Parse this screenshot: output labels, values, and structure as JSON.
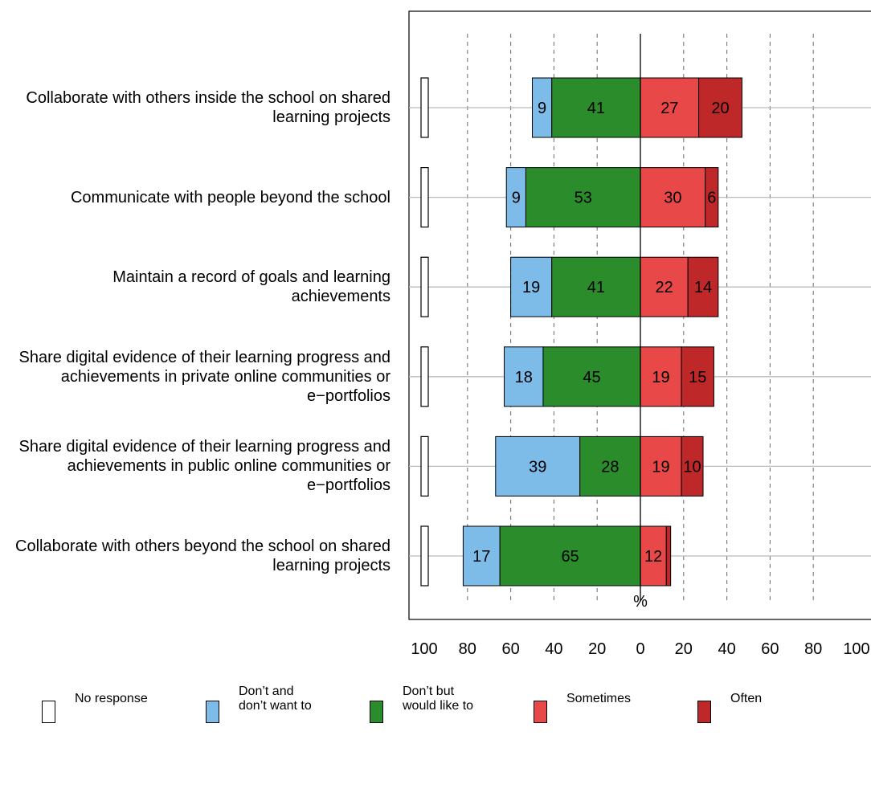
{
  "chart_data": {
    "type": "bar",
    "orientation": "horizontal",
    "stacking": "diverging",
    "xlabel": "%",
    "xticks": [
      "100",
      "80",
      "60",
      "40",
      "20",
      "0",
      "20",
      "40",
      "60",
      "80",
      "100"
    ],
    "xlim": [
      -100,
      100
    ],
    "grid": true,
    "legend_position": "bottom",
    "categories": [
      "Collaborate with others inside the school on shared learning projects",
      "Communicate with people beyond the school",
      "Maintain a record of goals and learning achievements",
      "Share digital evidence of their learning progress and achievements in private online communities or e−portfolios",
      "Share digital evidence of their learning progress and achievements in public online communities or e−portfolios",
      "Collaborate with others beyond the school on shared learning projects"
    ],
    "series": [
      {
        "name": "No response",
        "color": "#ffffff",
        "side": "separate",
        "values": [
          0,
          0,
          0,
          0,
          0,
          0
        ]
      },
      {
        "name": "Don’t and\ndon’t want to",
        "color": "#7dbbe8",
        "side": "negative",
        "values": [
          9,
          9,
          19,
          18,
          39,
          17
        ]
      },
      {
        "name": "Don’t but\nwould like to",
        "color": "#2a8c2a",
        "side": "negative",
        "values": [
          41,
          53,
          41,
          45,
          28,
          65
        ]
      },
      {
        "name": "Sometimes",
        "color": "#e84848",
        "side": "positive",
        "values": [
          27,
          30,
          22,
          19,
          19,
          12
        ]
      },
      {
        "name": "Often",
        "color": "#bf2828",
        "side": "positive",
        "values": [
          20,
          6,
          14,
          15,
          10,
          2
        ]
      }
    ],
    "value_labels": [
      [
        "9",
        "41",
        "27",
        "20"
      ],
      [
        "9",
        "53",
        "30",
        "6"
      ],
      [
        "19",
        "41",
        "22",
        "14"
      ],
      [
        "18",
        "45",
        "19",
        "15"
      ],
      [
        "39",
        "28",
        "19",
        "10"
      ],
      [
        "17",
        "65",
        "12",
        ""
      ]
    ]
  }
}
